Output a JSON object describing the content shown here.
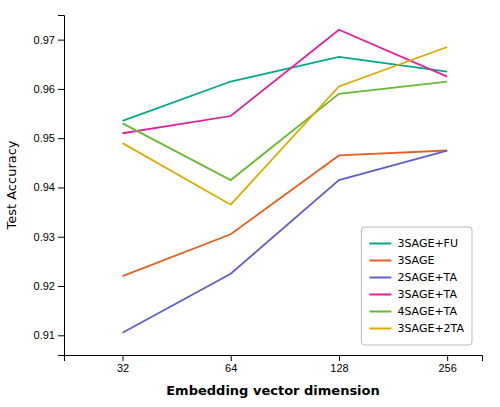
{
  "chart_data": {
    "type": "line",
    "xlabel": "Embedding vector dimension",
    "ylabel": "Test Accuracy",
    "x": [
      32,
      64,
      128,
      256
    ],
    "series": [
      {
        "name": "3SAGE+FU",
        "color": "#00aa88",
        "values": [
          0.9535,
          0.9615,
          0.9665,
          0.9635
        ]
      },
      {
        "name": "3SAGE",
        "color": "#e86020",
        "values": [
          0.922,
          0.9305,
          0.9465,
          0.9475
        ]
      },
      {
        "name": "2SAGE+TA",
        "color": "#6060cc",
        "values": [
          0.9105,
          0.9225,
          0.9415,
          0.9475
        ]
      },
      {
        "name": "3SAGE+TA",
        "color": "#e020a0",
        "values": [
          0.951,
          0.9545,
          0.972,
          0.9625
        ]
      },
      {
        "name": "4SAGE+TA",
        "color": "#66bb33",
        "values": [
          0.953,
          0.9415,
          0.959,
          0.9615
        ]
      },
      {
        "name": "3SAGE+2TA",
        "color": "#ddaa00",
        "values": [
          0.949,
          0.9365,
          0.9605,
          0.9685
        ]
      }
    ],
    "xlim": [
      22,
      320
    ],
    "ylim": [
      0.906,
      0.975
    ],
    "xticks": [
      32,
      64,
      128,
      256
    ],
    "yticks": [
      0.91,
      0.92,
      0.93,
      0.94,
      0.95,
      0.96,
      0.97
    ],
    "log": "x",
    "legend": "lower right"
  }
}
